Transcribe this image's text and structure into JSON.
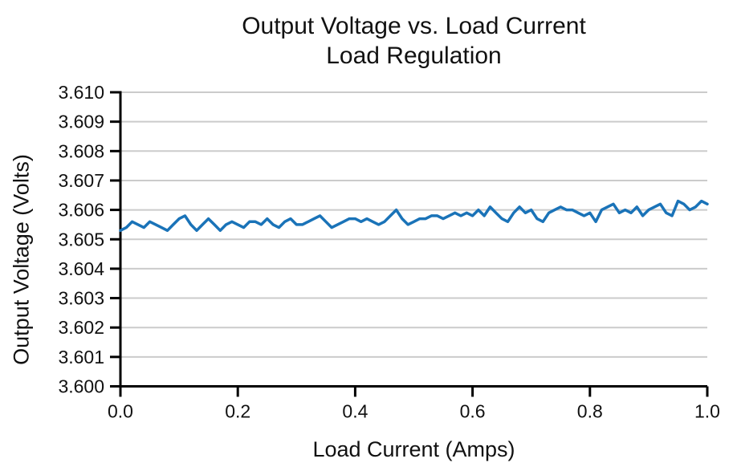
{
  "page": {
    "background_color": "#ffffff",
    "text_color": "#111111"
  },
  "chart_data": {
    "type": "line",
    "title": "Output Voltage vs. Load Current",
    "subtitle": "Load Regulation",
    "xlabel": "Load Current (Amps)",
    "ylabel": "Output Voltage (Volts)",
    "xlim": [
      0.0,
      1.0
    ],
    "ylim": [
      3.6,
      3.61
    ],
    "x_tick_values": [
      0.0,
      0.2,
      0.4,
      0.6,
      0.8,
      1.0
    ],
    "x_tick_labels": [
      "0.0",
      "0.2",
      "0.4",
      "0.6",
      "0.8",
      "1.0"
    ],
    "y_tick_values": [
      3.6,
      3.601,
      3.602,
      3.603,
      3.604,
      3.605,
      3.606,
      3.607,
      3.608,
      3.609,
      3.61
    ],
    "y_tick_labels": [
      "3.600",
      "3.601",
      "3.602",
      "3.603",
      "3.604",
      "3.605",
      "3.606",
      "3.607",
      "3.608",
      "3.609",
      "3.610"
    ],
    "grid": "horizontal",
    "legend": "none",
    "line_color": "#1a73b8",
    "grid_color": "#cbcbcb",
    "axis_color": "#000000",
    "series": [
      {
        "name": "Output Voltage",
        "x_start": 0.0,
        "x_step": 0.01,
        "values": [
          3.6053,
          3.6054,
          3.6056,
          3.6055,
          3.6054,
          3.6056,
          3.6055,
          3.6054,
          3.6053,
          3.6055,
          3.6057,
          3.6058,
          3.6055,
          3.6053,
          3.6055,
          3.6057,
          3.6055,
          3.6053,
          3.6055,
          3.6056,
          3.6055,
          3.6054,
          3.6056,
          3.6056,
          3.6055,
          3.6057,
          3.6055,
          3.6054,
          3.6056,
          3.6057,
          3.6055,
          3.6055,
          3.6056,
          3.6057,
          3.6058,
          3.6056,
          3.6054,
          3.6055,
          3.6056,
          3.6057,
          3.6057,
          3.6056,
          3.6057,
          3.6056,
          3.6055,
          3.6056,
          3.6058,
          3.606,
          3.6057,
          3.6055,
          3.6056,
          3.6057,
          3.6057,
          3.6058,
          3.6058,
          3.6057,
          3.6058,
          3.6059,
          3.6058,
          3.6059,
          3.6058,
          3.606,
          3.6058,
          3.6061,
          3.6059,
          3.6057,
          3.6056,
          3.6059,
          3.6061,
          3.6059,
          3.606,
          3.6057,
          3.6056,
          3.6059,
          3.606,
          3.6061,
          3.606,
          3.606,
          3.6059,
          3.6058,
          3.6059,
          3.6056,
          3.606,
          3.6061,
          3.6062,
          3.6059,
          3.606,
          3.6059,
          3.6061,
          3.6058,
          3.606,
          3.6061,
          3.6062,
          3.6059,
          3.6058,
          3.6063,
          3.6062,
          3.606,
          3.6061,
          3.6063,
          3.6062
        ]
      }
    ]
  }
}
